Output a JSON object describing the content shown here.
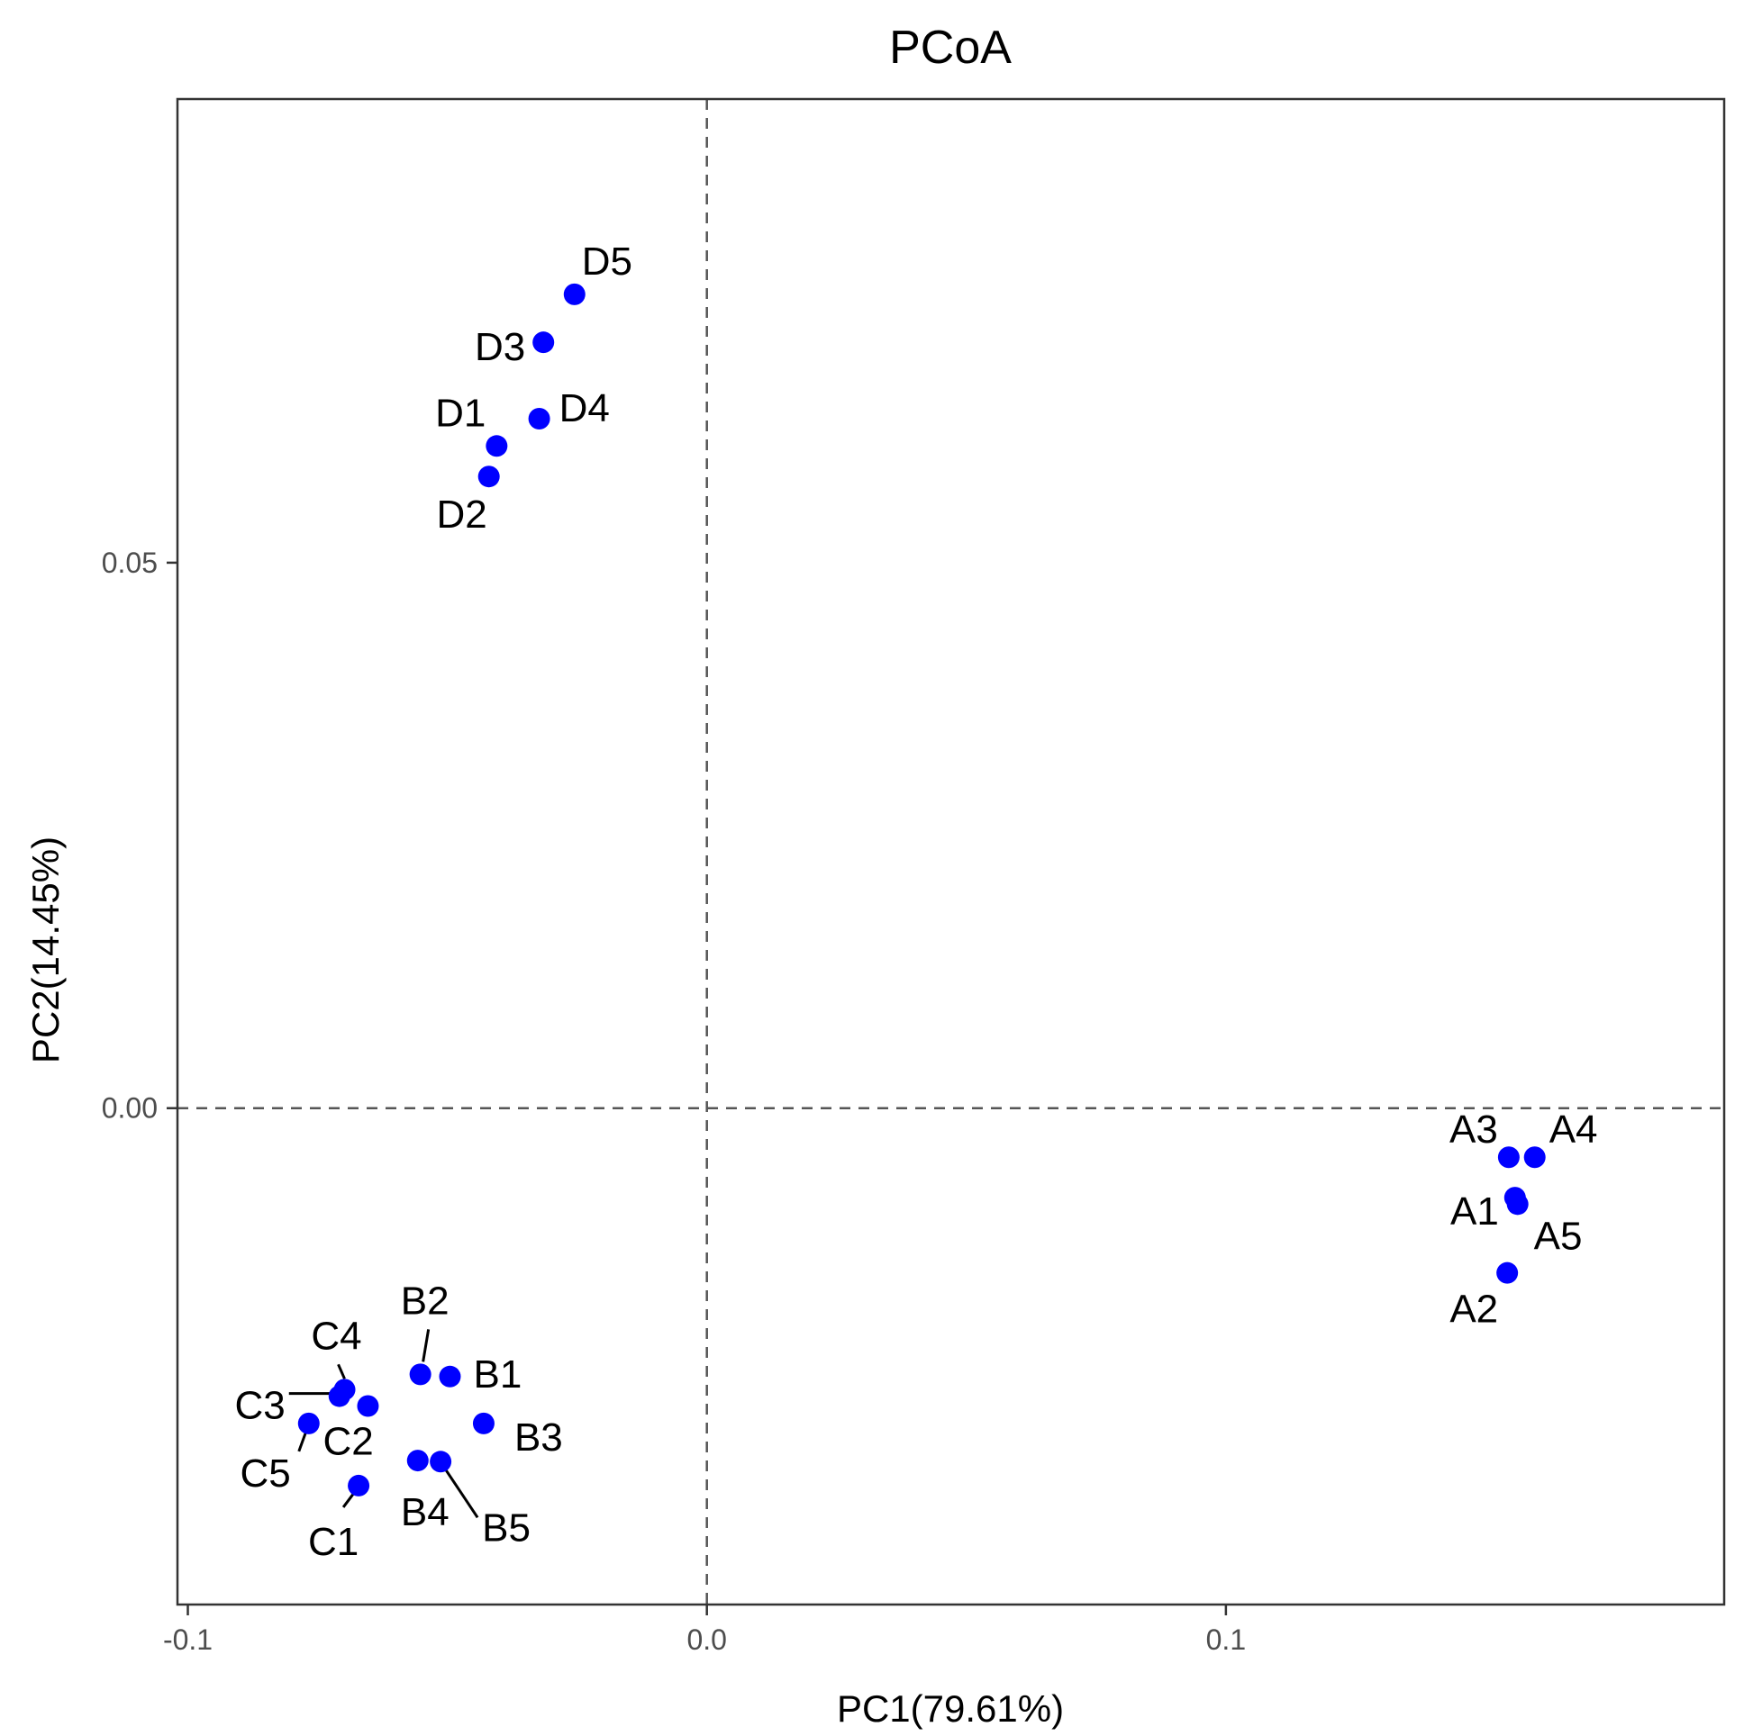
{
  "chart_data": {
    "type": "scatter",
    "title": "PCoA",
    "xlabel": "PC1(79.61%)",
    "ylabel": "PC2(14.45%)",
    "xlim": [
      -0.102,
      0.196
    ],
    "ylim": [
      -0.0455,
      0.0925
    ],
    "x_ticks": [
      {
        "value": -0.1,
        "label": "-0.1"
      },
      {
        "value": 0.0,
        "label": "0.0"
      },
      {
        "value": 0.1,
        "label": "0.1"
      }
    ],
    "y_ticks": [
      {
        "value": 0.0,
        "label": "0.00"
      },
      {
        "value": 0.05,
        "label": "0.05"
      }
    ],
    "reference_lines": {
      "x": 0.0,
      "y": 0.0
    },
    "grid": false,
    "point_color": "#0000ff",
    "points": [
      {
        "name": "D5",
        "x": -0.0255,
        "y": 0.0746
      },
      {
        "name": "D3",
        "x": -0.0315,
        "y": 0.0702
      },
      {
        "name": "D4",
        "x": -0.0323,
        "y": 0.0632
      },
      {
        "name": "D1",
        "x": -0.0405,
        "y": 0.0607
      },
      {
        "name": "D2",
        "x": -0.042,
        "y": 0.0579
      },
      {
        "name": "A3",
        "x": 0.1545,
        "y": -0.0045
      },
      {
        "name": "A4",
        "x": 0.1595,
        "y": -0.0045
      },
      {
        "name": "A1",
        "x": 0.1557,
        "y": -0.0082
      },
      {
        "name": "A5",
        "x": 0.1562,
        "y": -0.0088
      },
      {
        "name": "A2",
        "x": 0.1542,
        "y": -0.0151
      },
      {
        "name": "B2",
        "x": -0.0552,
        "y": -0.0244
      },
      {
        "name": "B1",
        "x": -0.0495,
        "y": -0.0246
      },
      {
        "name": "B3",
        "x": -0.043,
        "y": -0.0289
      },
      {
        "name": "B4",
        "x": -0.0557,
        "y": -0.0323
      },
      {
        "name": "B5",
        "x": -0.0513,
        "y": -0.0324
      },
      {
        "name": "C4",
        "x": -0.0698,
        "y": -0.0258
      },
      {
        "name": "C3",
        "x": -0.0708,
        "y": -0.0264
      },
      {
        "name": "C2",
        "x": -0.0653,
        "y": -0.0273
      },
      {
        "name": "C5",
        "x": -0.0767,
        "y": -0.0289
      },
      {
        "name": "C1",
        "x": -0.0671,
        "y": -0.0346
      }
    ]
  }
}
